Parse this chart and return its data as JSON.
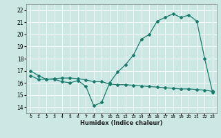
{
  "xlabel": "Humidex (Indice chaleur)",
  "bg_color": "#cce8e4",
  "grid_color": "#ffffff",
  "line_color": "#1a7a6e",
  "xlim": [
    -0.5,
    23.5
  ],
  "ylim": [
    13.5,
    22.5
  ],
  "yticks": [
    14,
    15,
    16,
    17,
    18,
    19,
    20,
    21,
    22
  ],
  "xticks": [
    0,
    1,
    2,
    3,
    4,
    5,
    6,
    7,
    8,
    9,
    10,
    11,
    12,
    13,
    14,
    15,
    16,
    17,
    18,
    19,
    20,
    21,
    22,
    23
  ],
  "series1_x": [
    0,
    1,
    2,
    3,
    4,
    5,
    6,
    7,
    8,
    9,
    10,
    11,
    12,
    13,
    14,
    15,
    16,
    17,
    18,
    19,
    20,
    21,
    22,
    23
  ],
  "series1_y": [
    17.0,
    16.6,
    16.3,
    16.3,
    16.1,
    16.0,
    16.2,
    15.7,
    14.1,
    14.4,
    16.0,
    16.9,
    17.5,
    18.3,
    19.6,
    20.0,
    21.1,
    21.4,
    21.7,
    21.4,
    21.6,
    21.1,
    18.0,
    15.2
  ],
  "series2_x": [
    0,
    1,
    2,
    3,
    4,
    5,
    6,
    7,
    8,
    9,
    10,
    11,
    12,
    13,
    14,
    15,
    16,
    17,
    18,
    19,
    20,
    21,
    22,
    23
  ],
  "series2_y": [
    16.6,
    16.3,
    16.3,
    16.35,
    16.4,
    16.4,
    16.35,
    16.25,
    16.1,
    16.1,
    15.9,
    15.85,
    15.85,
    15.8,
    15.75,
    15.7,
    15.65,
    15.6,
    15.55,
    15.5,
    15.5,
    15.45,
    15.4,
    15.3
  ]
}
